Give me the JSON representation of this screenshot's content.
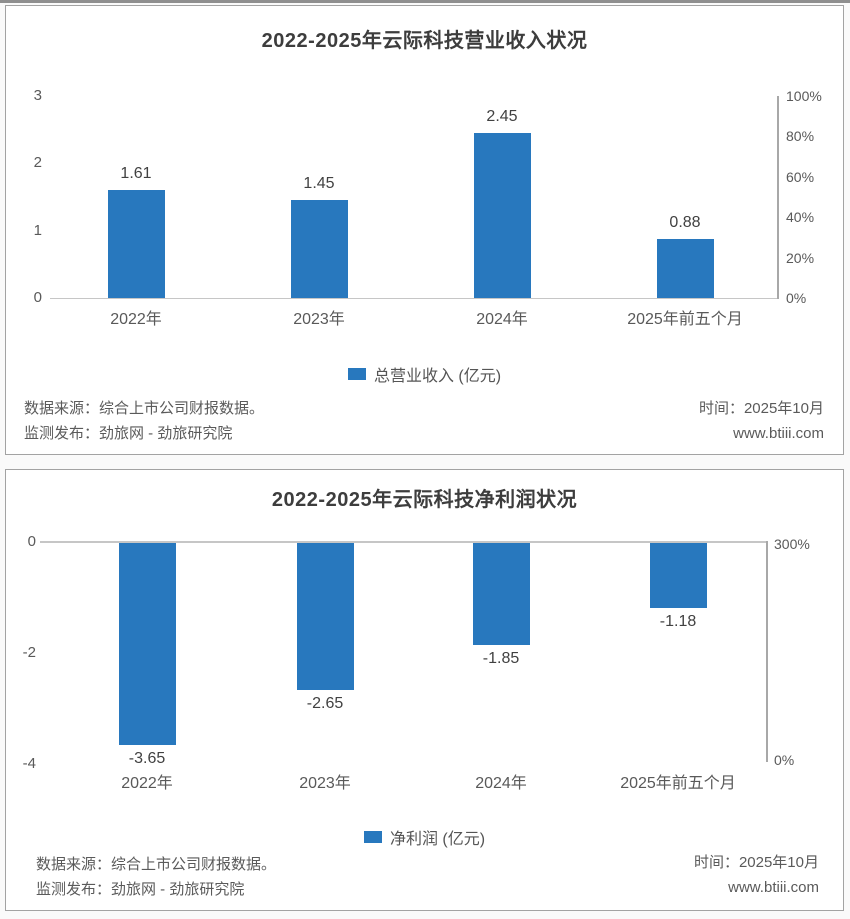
{
  "page": {
    "accent_blue": "#2878BE"
  },
  "footer": {
    "source": "数据来源：综合上市公司财报数据。",
    "publisher": "监测发布：劲旅网 - 劲旅研究院",
    "time": "时间：2025年10月",
    "site": "www.btiii.com"
  },
  "chart_data": [
    {
      "type": "bar",
      "title": "2022-2025年云际科技营业收入状况",
      "categories": [
        "2022年",
        "2023年",
        "2024年",
        "2025年前五个月"
      ],
      "series": [
        {
          "name": "总营业收入 (亿元)",
          "values": [
            1.61,
            1.45,
            2.45,
            0.88
          ]
        }
      ],
      "value_labels": [
        "1.61",
        "1.45",
        "2.45",
        "0.88"
      ],
      "left_axis": {
        "ticks": [
          3,
          2,
          1,
          0
        ],
        "range": [
          0,
          3
        ]
      },
      "right_axis": {
        "ticks": [
          "100%",
          "80%",
          "60%",
          "40%",
          "20%",
          "0%"
        ],
        "range": [
          "0%",
          "100%"
        ]
      },
      "legend": "总营业收入 (亿元)",
      "legend_position": "bottom",
      "grid": false,
      "bar_color": "#2878BE"
    },
    {
      "type": "bar",
      "title": "2022-2025年云际科技净利润状况",
      "categories": [
        "2022年",
        "2023年",
        "2024年",
        "2025年前五个月"
      ],
      "series": [
        {
          "name": "净利润 (亿元)",
          "values": [
            -3.65,
            -2.65,
            -1.85,
            -1.18
          ]
        }
      ],
      "value_labels": [
        "-3.65",
        "-2.65",
        "-1.85",
        "-1.18"
      ],
      "left_axis": {
        "ticks": [
          0,
          -2,
          -4
        ],
        "range": [
          -4,
          0
        ]
      },
      "right_axis": {
        "ticks": [
          "300%",
          "0%"
        ],
        "range": [
          "0%",
          "300%"
        ]
      },
      "legend": "净利润 (亿元)",
      "legend_position": "bottom",
      "grid": false,
      "bar_color": "#2878BE"
    }
  ]
}
